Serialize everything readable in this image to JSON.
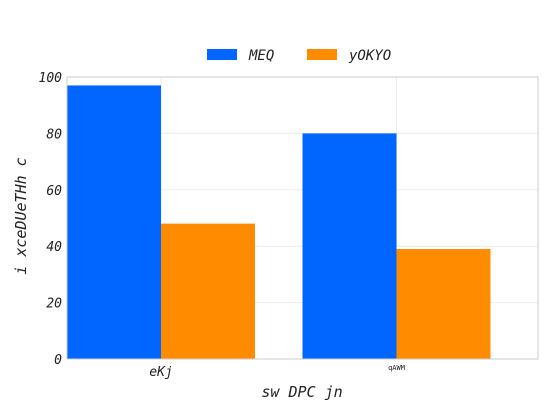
{
  "chart_data": {
    "type": "bar",
    "title": "",
    "xlabel": "sw DPC jn",
    "ylabel": "i xceDUeTHh c",
    "categories": [
      "eKj",
      "qAWM"
    ],
    "series": [
      {
        "name": "MEQ",
        "values": [
          97,
          80
        ],
        "color": "#0066ff"
      },
      {
        "name": "yOKYO",
        "values": [
          48,
          39
        ],
        "color": "#ff8c00"
      }
    ],
    "ylim": [
      0,
      100
    ],
    "yticks": [
      0,
      20,
      40,
      60,
      80,
      100
    ],
    "grid": true,
    "legend_position": "top-center"
  }
}
